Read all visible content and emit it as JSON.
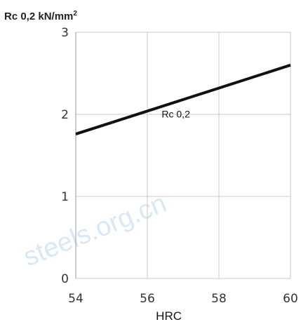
{
  "chart_data": {
    "type": "line",
    "ylabel_main": "Rc 0,2 kN/mm",
    "ylabel_sup": "2",
    "xlabel": "HRC",
    "xlim": [
      54,
      60
    ],
    "ylim": [
      0,
      3
    ],
    "x_ticks": [
      "54",
      "56",
      "58",
      "60"
    ],
    "y_ticks": [
      "0",
      "1",
      "2",
      "3"
    ],
    "grid": true,
    "series": [
      {
        "name": "Rc 0,2",
        "x": [
          54,
          60
        ],
        "y": [
          1.76,
          2.6
        ],
        "color": "#111111"
      }
    ],
    "annotation": "Rc 0,2",
    "watermark": "steels.org.cn"
  }
}
